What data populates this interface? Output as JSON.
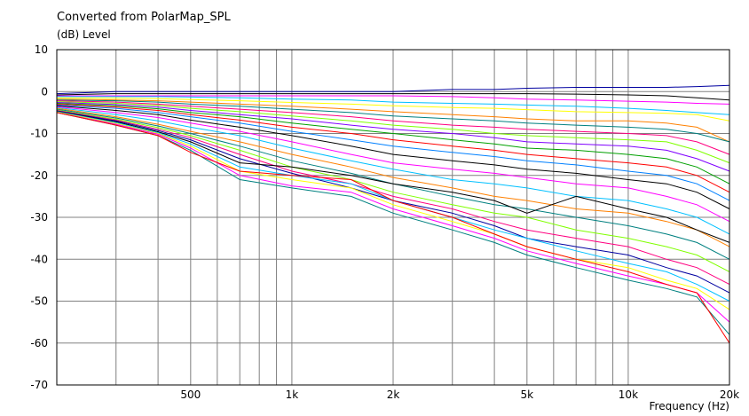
{
  "chart_data": {
    "type": "line",
    "title": "Converted from PolarMap_SPL",
    "ylabel": "(dB)  Level",
    "xlabel": "Frequency  (Hz)",
    "x_scale": "log",
    "xlim": [
      200,
      20000
    ],
    "ylim": [
      -70,
      10
    ],
    "y_ticks": [
      10,
      0,
      -10,
      -20,
      -30,
      -40,
      -50,
      -60,
      -70
    ],
    "x_ticks": [
      {
        "value": 500,
        "label": "500"
      },
      {
        "value": 1000,
        "label": "1k"
      },
      {
        "value": 2000,
        "label": "2k"
      },
      {
        "value": 5000,
        "label": "5k"
      },
      {
        "value": 10000,
        "label": "10k"
      },
      {
        "value": 20000,
        "label": "20k"
      }
    ],
    "grid": true,
    "x": [
      200,
      300,
      400,
      500,
      700,
      1000,
      1500,
      2000,
      3000,
      4000,
      5000,
      7000,
      10000,
      13000,
      16000,
      20000
    ],
    "series": [
      {
        "color": "#0000a0",
        "values": [
          -0.5,
          0,
          0,
          0,
          0,
          0,
          0,
          0,
          0.5,
          0.5,
          0.8,
          1,
          1,
          1,
          1.2,
          1.5
        ]
      },
      {
        "color": "#000000",
        "values": [
          -0.8,
          -0.5,
          -0.5,
          -0.5,
          -0.5,
          -0.5,
          -0.5,
          -0.5,
          -0.5,
          -0.5,
          -0.5,
          -0.6,
          -0.8,
          -1,
          -1.5,
          -2
        ]
      },
      {
        "color": "#ff00ff",
        "values": [
          -1,
          -1,
          -1,
          -1,
          -1,
          -1,
          -1,
          -1,
          -1.2,
          -1.5,
          -1.8,
          -2,
          -2.3,
          -2.5,
          -2.8,
          -3
        ]
      },
      {
        "color": "#00c0ff",
        "values": [
          -1.2,
          -1.2,
          -1.2,
          -1.3,
          -1.5,
          -1.8,
          -2,
          -2.5,
          -2.8,
          -3,
          -3.2,
          -3.5,
          -4,
          -4.5,
          -5,
          -5.5
        ]
      },
      {
        "color": "#ffff00",
        "values": [
          -1.5,
          -1.6,
          -1.7,
          -1.9,
          -2.2,
          -2.6,
          -3,
          -3.4,
          -3.8,
          -4,
          -4.3,
          -4.8,
          -5,
          -5.2,
          -5.5,
          -7
        ]
      },
      {
        "color": "#ff8000",
        "values": [
          -1.8,
          -2,
          -2.2,
          -2.5,
          -3,
          -3.5,
          -4.2,
          -4.8,
          -5.5,
          -6,
          -6.5,
          -7,
          -7,
          -7.5,
          -8.5,
          -12
        ]
      },
      {
        "color": "#008080",
        "values": [
          -2,
          -2.2,
          -2.5,
          -3,
          -3.5,
          -4.2,
          -5,
          -5.8,
          -6.5,
          -7,
          -7.5,
          -8,
          -8.5,
          -9,
          -10,
          -12
        ]
      },
      {
        "color": "#ff0080",
        "values": [
          -2.2,
          -2.5,
          -3,
          -3.5,
          -4.2,
          -5,
          -6,
          -7,
          -8,
          -8.5,
          -9,
          -9.5,
          -10,
          -10.5,
          -12,
          -15
        ]
      },
      {
        "color": "#80ff00",
        "values": [
          -2.4,
          -2.8,
          -3.3,
          -4,
          -4.8,
          -5.8,
          -7,
          -8,
          -9,
          -10,
          -10.5,
          -11,
          -11.5,
          -12,
          -14,
          -17
        ]
      },
      {
        "color": "#8000ff",
        "values": [
          -2.6,
          -3.1,
          -3.7,
          -4.5,
          -5.5,
          -6.5,
          -8,
          -9,
          -10,
          -11,
          -12,
          -12.5,
          -13,
          -14,
          -16,
          -19
        ]
      },
      {
        "color": "#00a000",
        "values": [
          -2.8,
          -3.4,
          -4.1,
          -5,
          -6,
          -7.5,
          -9,
          -10,
          -11.5,
          -12.5,
          -13.5,
          -14,
          -15,
          -16,
          -18,
          -22
        ]
      },
      {
        "color": "#ff0000",
        "values": [
          -3,
          -3.7,
          -4.5,
          -5.5,
          -6.8,
          -8.5,
          -10,
          -11.5,
          -13,
          -14,
          -15,
          -16,
          -17,
          -18,
          -20,
          -24
        ]
      },
      {
        "color": "#0080ff",
        "values": [
          -3.2,
          -4,
          -5,
          -6,
          -7.5,
          -9.5,
          -11.5,
          -13,
          -14.5,
          -15.5,
          -16.5,
          -17.5,
          -19,
          -20,
          -22,
          -26
        ]
      },
      {
        "color": "#000000",
        "values": [
          -3.4,
          -4.5,
          -5.5,
          -6.8,
          -8.5,
          -10.5,
          -13,
          -15,
          -16.5,
          -17.5,
          -18.5,
          -19.5,
          -21,
          -22,
          -24,
          -28
        ]
      },
      {
        "color": "#ff00ff",
        "values": [
          -3.6,
          -5,
          -6.2,
          -7.5,
          -9.5,
          -12,
          -15,
          -17,
          -18.5,
          -19.5,
          -20.5,
          -22,
          -23,
          -25,
          -27,
          -31
        ]
      },
      {
        "color": "#00c0ff",
        "values": [
          -3.8,
          -5.5,
          -7,
          -8.5,
          -10.5,
          -13.5,
          -16.5,
          -18.5,
          -21,
          -22,
          -23,
          -25,
          -26,
          -28,
          -30,
          -34
        ]
      },
      {
        "color": "#ff8000",
        "values": [
          -4,
          -6,
          -7.8,
          -9.5,
          -12,
          -15,
          -18,
          -20.5,
          -23,
          -25,
          -26,
          -28,
          -29,
          -31,
          -33,
          -37
        ]
      },
      {
        "color": "#008080",
        "values": [
          -4.2,
          -6.3,
          -8.2,
          -10,
          -13,
          -16.5,
          -19.5,
          -22,
          -25,
          -27,
          -28,
          -30,
          -32,
          -34,
          -36,
          -40
        ]
      },
      {
        "color": "#80ff00",
        "values": [
          -4.4,
          -6.6,
          -8.6,
          -10.5,
          -14,
          -18,
          -21,
          -24,
          -27,
          -29,
          -30,
          -33,
          -35,
          -37,
          -39,
          -43
        ]
      },
      {
        "color": "#ff0080",
        "values": [
          -4.5,
          -6.8,
          -9,
          -11,
          -15,
          -19,
          -22,
          -25,
          -28,
          -31,
          -33,
          -35,
          -37,
          -40,
          -42,
          -46
        ]
      },
      {
        "color": "#0000a0",
        "values": [
          -4.6,
          -7,
          -9.3,
          -11.5,
          -16,
          -19.5,
          -23,
          -26,
          -29,
          -32,
          -35,
          -37,
          -39,
          -42,
          -44,
          -48
        ]
      },
      {
        "color": "#000000",
        "values": [
          -4.7,
          -7.2,
          -9.6,
          -12,
          -17,
          -18,
          -20,
          -22,
          -24,
          -26,
          -29,
          -25,
          -28,
          -30,
          -33,
          -36
        ]
      },
      {
        "color": "#00c0ff",
        "values": [
          -4.8,
          -7.4,
          -9.8,
          -12.5,
          -18,
          -20,
          -22,
          -26,
          -30,
          -33,
          -35,
          -38,
          -41,
          -43,
          -46,
          -50
        ]
      },
      {
        "color": "#ffff00",
        "values": [
          -4.9,
          -7.6,
          -10,
          -13,
          -19,
          -21,
          -23,
          -27,
          -31,
          -34,
          -37,
          -40,
          -42,
          -45,
          -47,
          -52
        ]
      },
      {
        "color": "#ff00ff",
        "values": [
          -5,
          -7.8,
          -10.2,
          -13.5,
          -20,
          -22.5,
          -24,
          -28,
          -32,
          -35,
          -38,
          -41,
          -44,
          -46,
          -48,
          -55
        ]
      },
      {
        "color": "#008080",
        "values": [
          -5,
          -8,
          -10.5,
          -14,
          -21,
          -23,
          -25,
          -29,
          -33,
          -36,
          -39,
          -42,
          -45,
          -47,
          -49,
          -58
        ]
      },
      {
        "color": "#ff0000",
        "values": [
          -5,
          -8,
          -10.5,
          -14.5,
          -19,
          -20,
          -21,
          -26,
          -30,
          -34,
          -37,
          -40,
          -43,
          -46,
          -48,
          -60
        ]
      }
    ]
  }
}
